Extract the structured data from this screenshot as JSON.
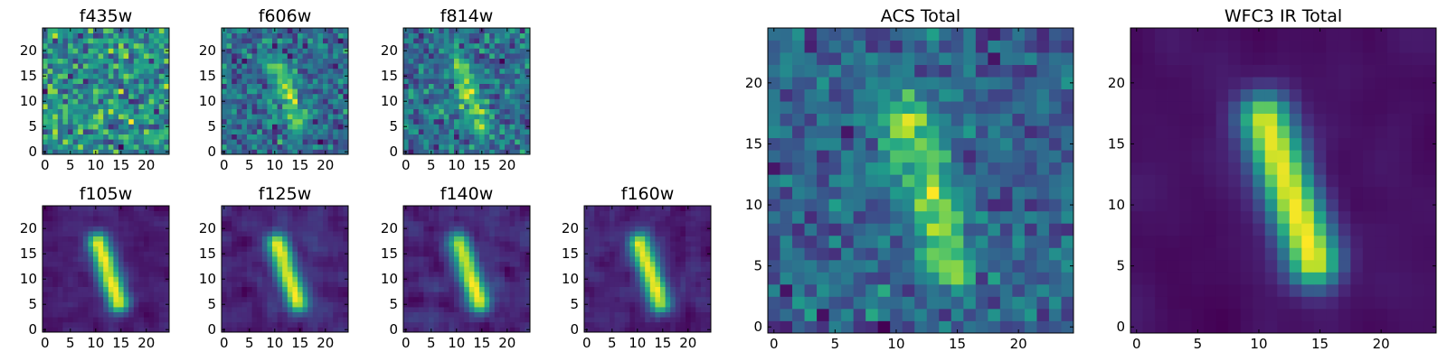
{
  "chart_data": [
    {
      "type": "heatmap",
      "title": "f435w",
      "x_ticks": [
        "0",
        "5",
        "10",
        "15",
        "20"
      ],
      "y_ticks": [
        "0",
        "5",
        "10",
        "15",
        "20"
      ],
      "xlim": [
        -0.5,
        24.5
      ],
      "ylim": [
        -0.5,
        24.5
      ],
      "grid": false,
      "colormap": "viridis",
      "source": {
        "seed": 11,
        "noise": 0.9,
        "blob": 0.0,
        "smooth": 0
      }
    },
    {
      "type": "heatmap",
      "title": "f606w",
      "x_ticks": [
        "0",
        "5",
        "10",
        "15",
        "20"
      ],
      "y_ticks": [
        "0",
        "5",
        "10",
        "15",
        "20"
      ],
      "xlim": [
        -0.5,
        24.5
      ],
      "ylim": [
        -0.5,
        24.5
      ],
      "grid": false,
      "colormap": "viridis",
      "source": {
        "seed": 23,
        "noise": 0.9,
        "blob": 0.45,
        "smooth": 0
      }
    },
    {
      "type": "heatmap",
      "title": "f814w",
      "x_ticks": [
        "0",
        "5",
        "10",
        "15",
        "20"
      ],
      "y_ticks": [
        "0",
        "5",
        "10",
        "15",
        "20"
      ],
      "xlim": [
        -0.5,
        24.5
      ],
      "ylim": [
        -0.5,
        24.5
      ],
      "grid": false,
      "colormap": "viridis",
      "source": {
        "seed": 37,
        "noise": 0.9,
        "blob": 0.45,
        "smooth": 0
      }
    },
    {
      "type": "heatmap",
      "title": "f105w",
      "x_ticks": [
        "0",
        "5",
        "10",
        "15",
        "20"
      ],
      "y_ticks": [
        "0",
        "5",
        "10",
        "15",
        "20"
      ],
      "xlim": [
        -0.5,
        24.5
      ],
      "ylim": [
        -0.5,
        24.5
      ],
      "grid": false,
      "colormap": "viridis",
      "source": {
        "seed": 41,
        "noise": 0.45,
        "blob": 1.0,
        "smooth": 1
      }
    },
    {
      "type": "heatmap",
      "title": "f125w",
      "x_ticks": [
        "0",
        "5",
        "10",
        "15",
        "20"
      ],
      "y_ticks": [
        "0",
        "5",
        "10",
        "15",
        "20"
      ],
      "xlim": [
        -0.5,
        24.5
      ],
      "ylim": [
        -0.5,
        24.5
      ],
      "grid": false,
      "colormap": "viridis",
      "source": {
        "seed": 53,
        "noise": 0.55,
        "blob": 0.85,
        "smooth": 1
      }
    },
    {
      "type": "heatmap",
      "title": "f140w",
      "x_ticks": [
        "0",
        "5",
        "10",
        "15",
        "20"
      ],
      "y_ticks": [
        "0",
        "5",
        "10",
        "15",
        "20"
      ],
      "xlim": [
        -0.5,
        24.5
      ],
      "ylim": [
        -0.5,
        24.5
      ],
      "grid": false,
      "colormap": "viridis",
      "source": {
        "seed": 67,
        "noise": 0.6,
        "blob": 0.8,
        "smooth": 1
      }
    },
    {
      "type": "heatmap",
      "title": "f160w",
      "x_ticks": [
        "0",
        "5",
        "10",
        "15",
        "20"
      ],
      "y_ticks": [
        "0",
        "5",
        "10",
        "15",
        "20"
      ],
      "xlim": [
        -0.5,
        24.5
      ],
      "ylim": [
        -0.5,
        24.5
      ],
      "grid": false,
      "colormap": "viridis",
      "source": {
        "seed": 79,
        "noise": 0.55,
        "blob": 0.85,
        "smooth": 1
      }
    },
    {
      "type": "heatmap",
      "title": "ACS Total",
      "x_ticks": [
        "0",
        "5",
        "10",
        "15",
        "20"
      ],
      "y_ticks": [
        "0",
        "5",
        "10",
        "15",
        "20"
      ],
      "xlim": [
        -0.5,
        24.5
      ],
      "ylim": [
        -0.5,
        24.5
      ],
      "grid": false,
      "colormap": "viridis",
      "source": {
        "seed": 97,
        "noise": 0.75,
        "blob": 0.55,
        "smooth": 0
      }
    },
    {
      "type": "heatmap",
      "title": "WFC3 IR Total",
      "x_ticks": [
        "0",
        "5",
        "10",
        "15",
        "20"
      ],
      "y_ticks": [
        "0",
        "5",
        "10",
        "15",
        "20"
      ],
      "xlim": [
        -0.5,
        24.5
      ],
      "ylim": [
        -0.5,
        24.5
      ],
      "grid": false,
      "colormap": "viridis",
      "source": {
        "seed": 113,
        "noise": 0.35,
        "blob": 1.0,
        "smooth": 2
      }
    }
  ]
}
